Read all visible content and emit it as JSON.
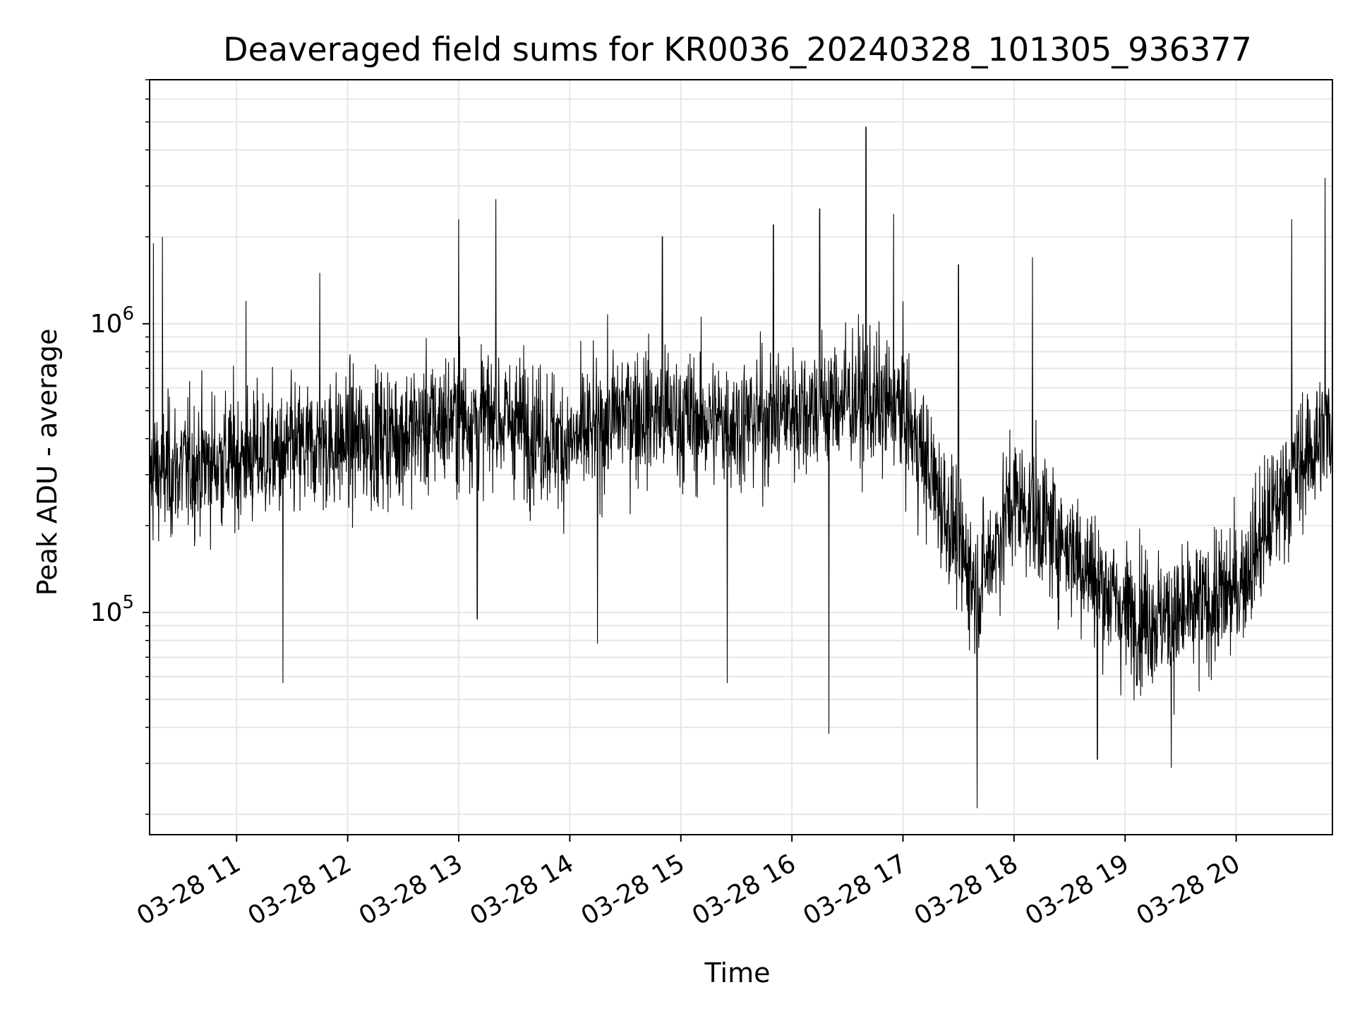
{
  "chart_data": {
    "type": "line",
    "title": "Deaveraged field sums for KR0036_20240328_101305_936377",
    "xlabel": "Time",
    "ylabel": "Peak ADU - average",
    "yscale": "log",
    "ylim": [
      17000,
      7000000
    ],
    "xlim": [
      "03-28 10:13",
      "03-28 20:52"
    ],
    "grid": true,
    "x_ticks": [
      {
        "label": "03-28 11",
        "value": "11:00"
      },
      {
        "label": "03-28 12",
        "value": "12:00"
      },
      {
        "label": "03-28 13",
        "value": "13:00"
      },
      {
        "label": "03-28 14",
        "value": "14:00"
      },
      {
        "label": "03-28 15",
        "value": "15:00"
      },
      {
        "label": "03-28 16",
        "value": "16:00"
      },
      {
        "label": "03-28 17",
        "value": "17:00"
      },
      {
        "label": "03-28 18",
        "value": "18:00"
      },
      {
        "label": "03-28 19",
        "value": "19:00"
      },
      {
        "label": "03-28 20",
        "value": "20:00"
      }
    ],
    "y_ticks": [
      {
        "base": "10",
        "exp": "5",
        "value": 100000
      },
      {
        "base": "10",
        "exp": "6",
        "value": 1000000
      }
    ],
    "line_color": "#000000",
    "grid_color": "#e6e6e6",
    "series": [
      {
        "trend": [
          {
            "x": "10:13",
            "y": 300000
          },
          {
            "x": "10:45",
            "y": 330000
          },
          {
            "x": "11:30",
            "y": 360000
          },
          {
            "x": "12:00",
            "y": 390000
          },
          {
            "x": "12:30",
            "y": 420000
          },
          {
            "x": "13:00",
            "y": 480000
          },
          {
            "x": "13:30",
            "y": 460000
          },
          {
            "x": "14:00",
            "y": 380000
          },
          {
            "x": "14:30",
            "y": 500000
          },
          {
            "x": "15:00",
            "y": 470000
          },
          {
            "x": "15:30",
            "y": 450000
          },
          {
            "x": "16:00",
            "y": 500000
          },
          {
            "x": "16:30",
            "y": 550000
          },
          {
            "x": "17:00",
            "y": 500000
          },
          {
            "x": "17:15",
            "y": 300000
          },
          {
            "x": "17:40",
            "y": 120000
          },
          {
            "x": "18:00",
            "y": 250000
          },
          {
            "x": "18:30",
            "y": 170000
          },
          {
            "x": "19:00",
            "y": 100000
          },
          {
            "x": "19:30",
            "y": 95000
          },
          {
            "x": "20:00",
            "y": 120000
          },
          {
            "x": "20:30",
            "y": 300000
          },
          {
            "x": "20:52",
            "y": 450000
          }
        ],
        "spikes": [
          {
            "x": "10:15",
            "y": 1900000
          },
          {
            "x": "10:20",
            "y": 2000000
          },
          {
            "x": "11:05",
            "y": 1200000
          },
          {
            "x": "11:25",
            "y": 57000
          },
          {
            "x": "11:45",
            "y": 1500000
          },
          {
            "x": "13:00",
            "y": 2300000
          },
          {
            "x": "13:10",
            "y": 95000
          },
          {
            "x": "13:20",
            "y": 2700000
          },
          {
            "x": "14:15",
            "y": 78000
          },
          {
            "x": "14:50",
            "y": 2000000
          },
          {
            "x": "15:25",
            "y": 57000
          },
          {
            "x": "15:50",
            "y": 2200000
          },
          {
            "x": "16:15",
            "y": 2500000
          },
          {
            "x": "16:20",
            "y": 38000
          },
          {
            "x": "16:40",
            "y": 4800000
          },
          {
            "x": "16:55",
            "y": 2400000
          },
          {
            "x": "17:30",
            "y": 1600000
          },
          {
            "x": "17:40",
            "y": 21000
          },
          {
            "x": "18:10",
            "y": 1700000
          },
          {
            "x": "18:45",
            "y": 31000
          },
          {
            "x": "19:25",
            "y": 29000
          },
          {
            "x": "20:30",
            "y": 2300000
          },
          {
            "x": "20:48",
            "y": 3200000
          }
        ]
      }
    ]
  }
}
